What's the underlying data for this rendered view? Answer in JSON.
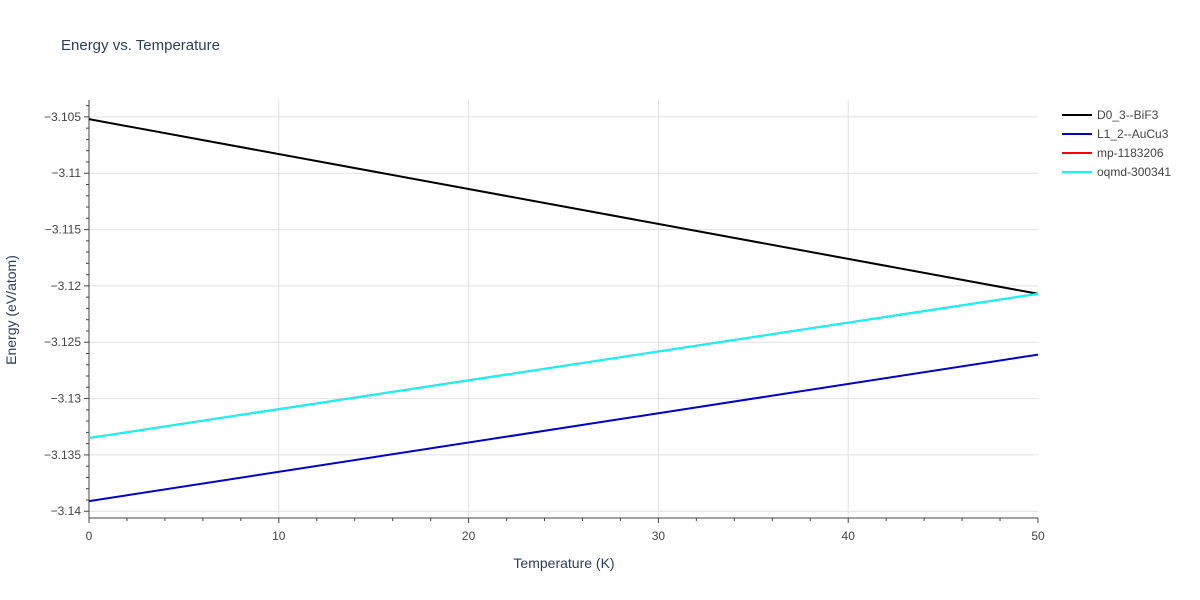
{
  "chart_data": {
    "type": "line",
    "title": "Energy vs. Temperature",
    "xlabel": "Temperature (K)",
    "ylabel": "Energy (eV/atom)",
    "xlim": [
      0,
      50
    ],
    "ylim": [
      -3.1406,
      -3.1035
    ],
    "x_ticks": [
      0,
      10,
      20,
      30,
      40,
      50
    ],
    "x_tick_labels": [
      "0",
      "10",
      "20",
      "30",
      "40",
      "50"
    ],
    "y_ticks": [
      -3.105,
      -3.11,
      -3.115,
      -3.12,
      -3.125,
      -3.13,
      -3.135,
      -3.14
    ],
    "y_tick_labels": [
      "−3.105",
      "−3.11",
      "−3.115",
      "−3.12",
      "−3.125",
      "−3.13",
      "−3.135",
      "−3.14"
    ],
    "grid": true,
    "legend_position": "top-right",
    "series": [
      {
        "name": "D0_3--BiF3",
        "color": "#000000",
        "x": [
          0,
          50
        ],
        "y": [
          -3.1052,
          -3.1207
        ]
      },
      {
        "name": "L1_2--AuCu3",
        "color": "#0000cd",
        "x": [
          0,
          50
        ],
        "y": [
          -3.1391,
          -3.1261
        ]
      },
      {
        "name": "mp-1183206",
        "color": "#ff0000",
        "x": [
          0,
          50
        ],
        "y": [
          -3.1335,
          -3.1207
        ]
      },
      {
        "name": "oqmd-300341",
        "color": "#00ffff",
        "x": [
          0,
          50
        ],
        "y": [
          -3.1335,
          -3.1207
        ]
      }
    ]
  }
}
